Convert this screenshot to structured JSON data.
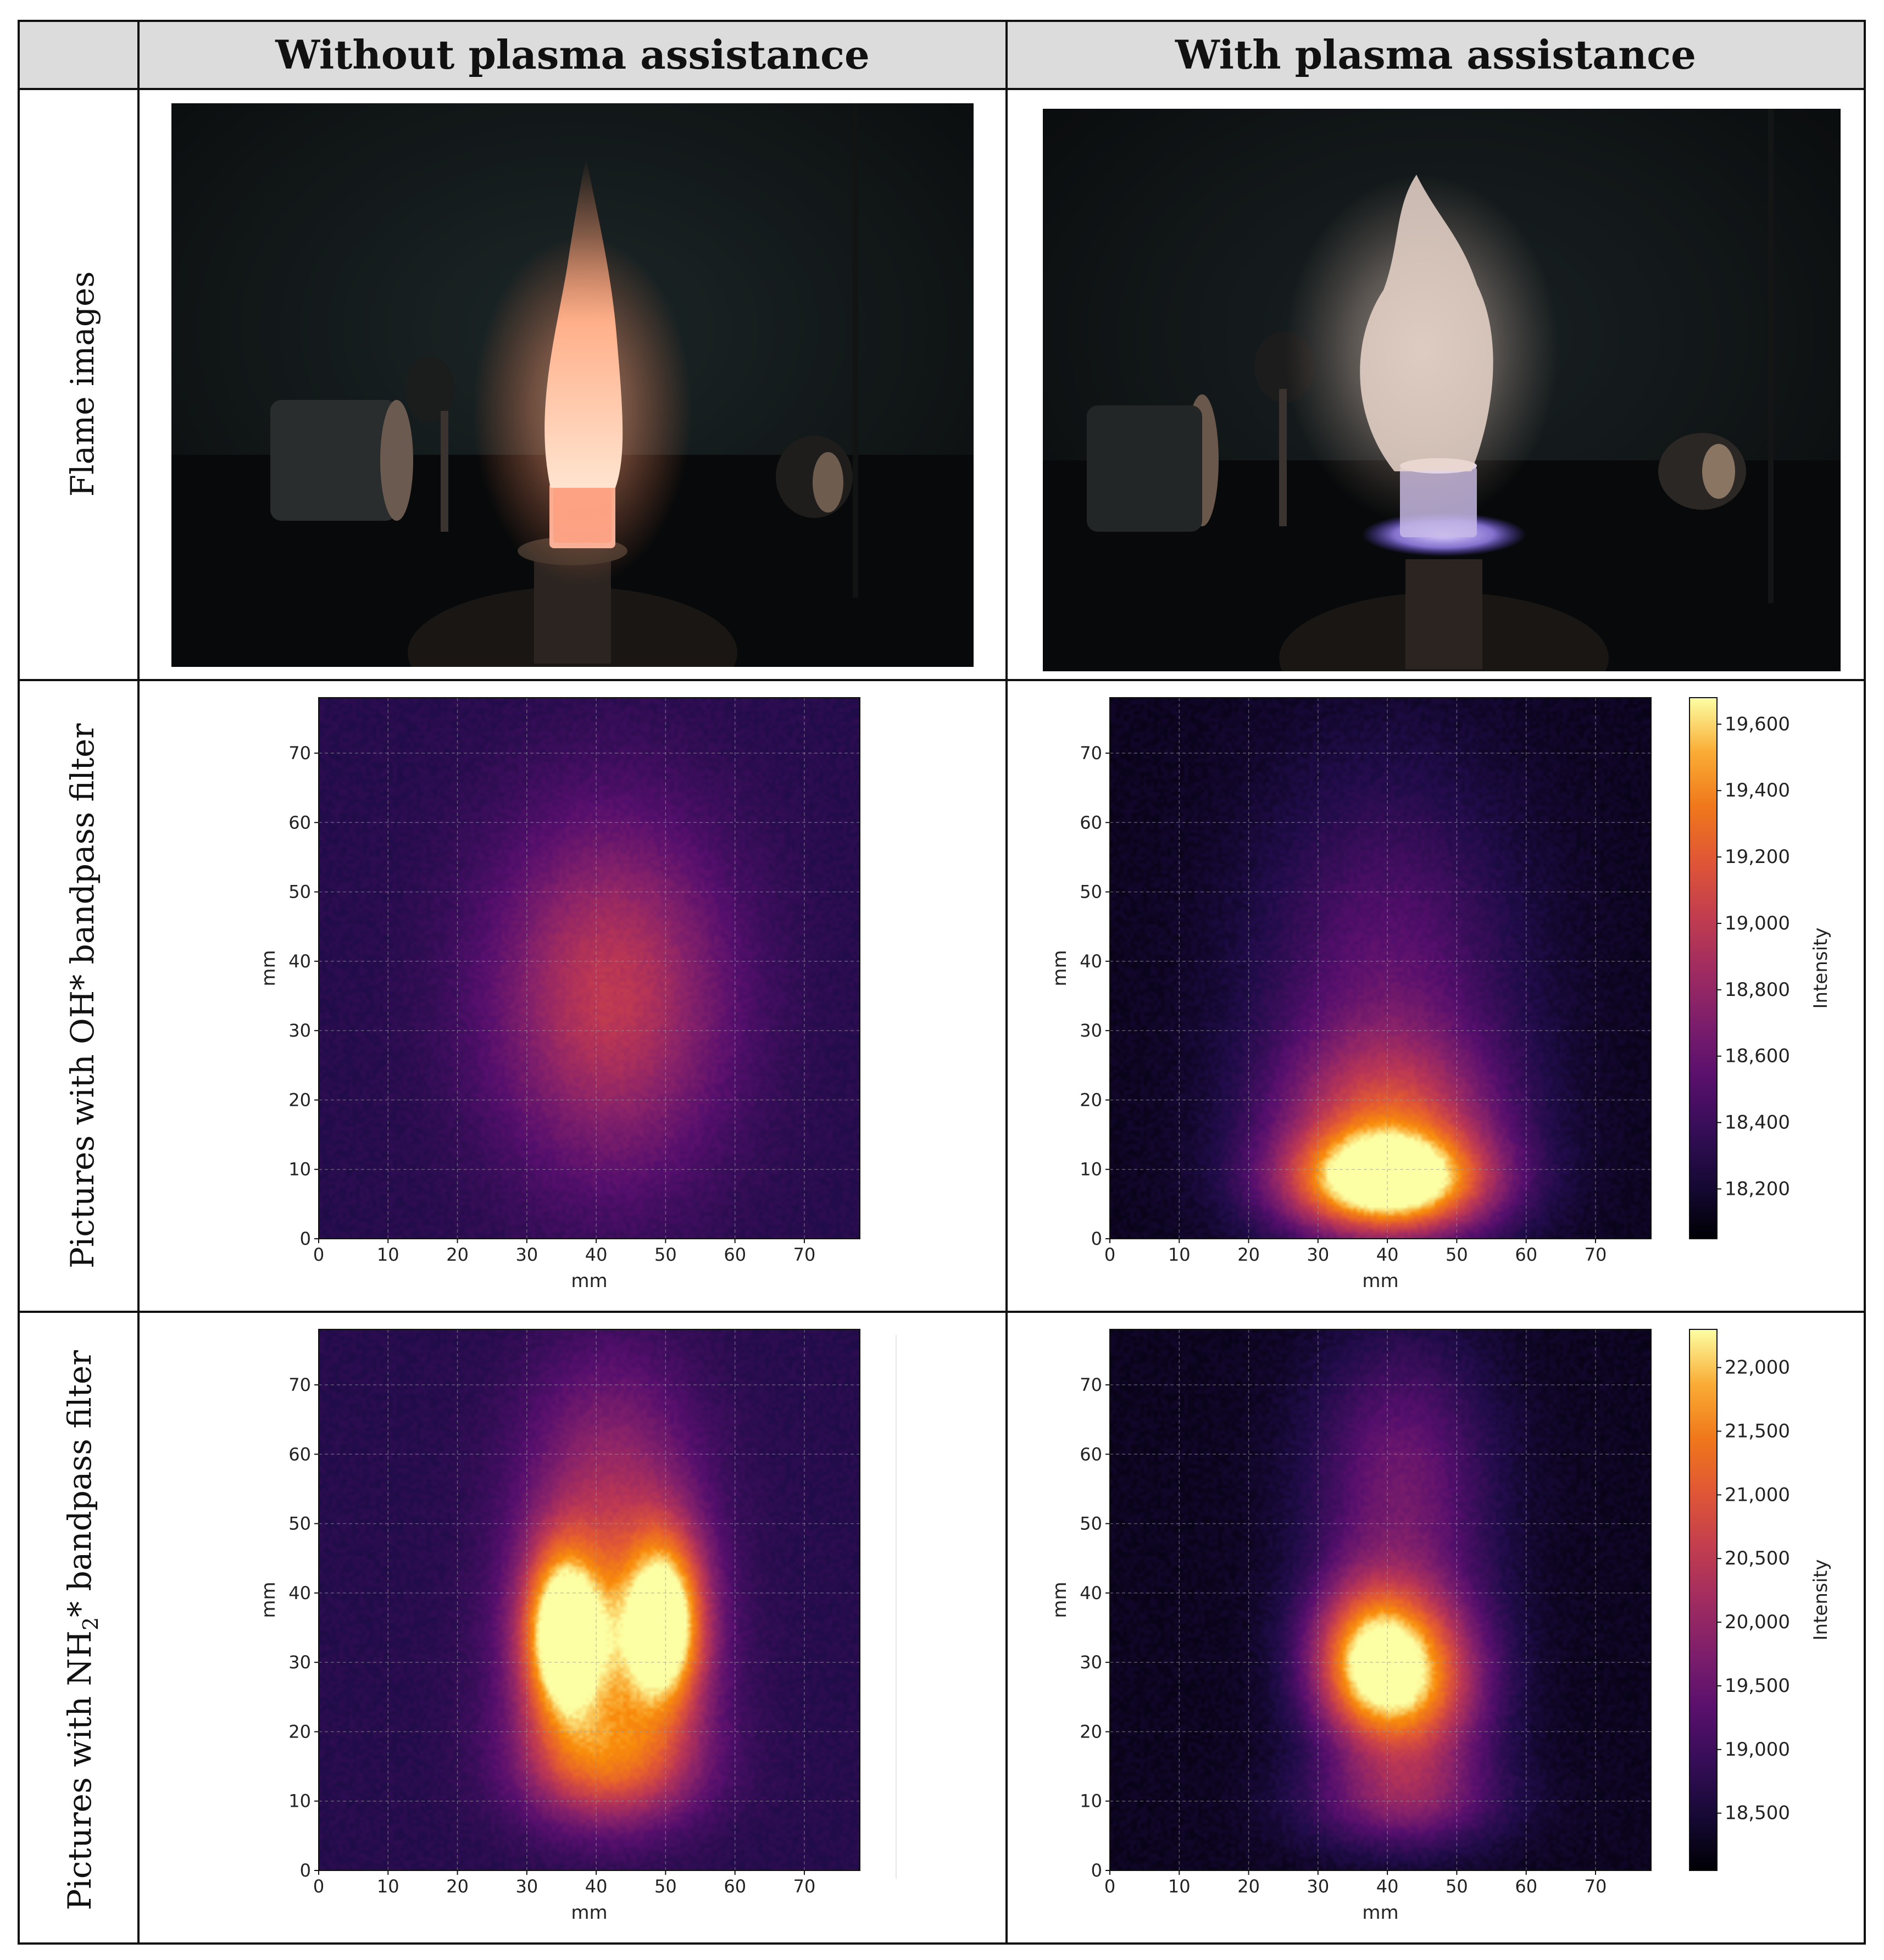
{
  "table": {
    "columns": [
      "Without plasma assistance",
      "With plasma assistance"
    ],
    "rows": [
      {
        "label": "Flame images"
      },
      {
        "label_prefix": "Pictures with OH* bandpass filter"
      },
      {
        "label_prefix": "Pictures with NH",
        "label_sub": "2",
        "label_suffix": "* bandpass filter"
      }
    ]
  },
  "photos": {
    "left": {
      "description_icon": "flame-photo-icon",
      "flame_color": "#ffb38a"
    },
    "right": {
      "description_icon": "flame-photo-icon",
      "flame_color": "#f2ddd4",
      "plasma_color": "#b9a4ff"
    }
  },
  "chart_data": [
    {
      "type": "heatmap",
      "id": "oh-no-plasma",
      "xlabel": "mm",
      "ylabel": "mm",
      "xlim": [
        0,
        78
      ],
      "ylim": [
        0,
        78
      ],
      "xticks": [
        0,
        10,
        20,
        30,
        40,
        50,
        60,
        70
      ],
      "yticks": [
        0,
        10,
        20,
        30,
        40,
        50,
        60,
        70
      ],
      "grid": true,
      "blobs": [
        {
          "x": 42,
          "y": 35,
          "sx": 12,
          "sy": 18,
          "peak": 0.42
        }
      ]
    },
    {
      "type": "heatmap",
      "id": "oh-plasma",
      "xlabel": "mm",
      "ylabel": "mm",
      "xlim": [
        0,
        78
      ],
      "ylim": [
        0,
        78
      ],
      "xticks": [
        0,
        10,
        20,
        30,
        40,
        50,
        60,
        70
      ],
      "yticks": [
        0,
        10,
        20,
        30,
        40,
        50,
        60,
        70
      ],
      "grid": true,
      "blobs": [
        {
          "x": 40,
          "y": 8,
          "sx": 10,
          "sy": 5,
          "peak": 0.85
        },
        {
          "x": 40,
          "y": 16,
          "sx": 11,
          "sy": 9,
          "peak": 0.45
        },
        {
          "x": 40,
          "y": 35,
          "sx": 13,
          "sy": 22,
          "peak": 0.25
        }
      ],
      "colorbar": {
        "label": "Intensity",
        "min": 18050,
        "max": 19680,
        "ticks": [
          "18,200",
          "18,400",
          "18,600",
          "18,800",
          "19,000",
          "19,200",
          "19,400",
          "19,600"
        ],
        "tick_values": [
          18200,
          18400,
          18600,
          18800,
          19000,
          19200,
          19400,
          19600
        ]
      }
    },
    {
      "type": "heatmap",
      "id": "nh2-no-plasma",
      "xlabel": "mm",
      "ylabel": "mm",
      "xlim": [
        0,
        78
      ],
      "ylim": [
        0,
        78
      ],
      "xticks": [
        0,
        10,
        20,
        30,
        40,
        50,
        60,
        70
      ],
      "yticks": [
        0,
        10,
        20,
        30,
        40,
        50,
        60,
        70
      ],
      "grid": true,
      "blobs": [
        {
          "x": 35,
          "y": 34,
          "sx": 4,
          "sy": 9,
          "peak": 0.75
        },
        {
          "x": 50,
          "y": 36,
          "sx": 4,
          "sy": 9,
          "peak": 0.75
        },
        {
          "x": 42,
          "y": 30,
          "sx": 9,
          "sy": 12,
          "peak": 0.5
        },
        {
          "x": 42,
          "y": 55,
          "sx": 9,
          "sy": 14,
          "peak": 0.3
        },
        {
          "x": 42,
          "y": 15,
          "sx": 9,
          "sy": 6,
          "peak": 0.4
        }
      ]
    },
    {
      "type": "heatmap",
      "id": "nh2-plasma",
      "xlabel": "mm",
      "ylabel": "mm",
      "xlim": [
        0,
        78
      ],
      "ylim": [
        0,
        78
      ],
      "xticks": [
        0,
        10,
        20,
        30,
        40,
        50,
        60,
        70
      ],
      "yticks": [
        0,
        10,
        20,
        30,
        40,
        50,
        60,
        70
      ],
      "grid": true,
      "blobs": [
        {
          "x": 37,
          "y": 30,
          "sx": 6,
          "sy": 8,
          "peak": 0.72
        },
        {
          "x": 45,
          "y": 27,
          "sx": 7,
          "sy": 9,
          "peak": 0.6
        },
        {
          "x": 42,
          "y": 55,
          "sx": 9,
          "sy": 15,
          "peak": 0.3
        },
        {
          "x": 42,
          "y": 10,
          "sx": 10,
          "sy": 5,
          "peak": 0.3
        }
      ],
      "colorbar": {
        "label": "Intensity",
        "min": 18050,
        "max": 22300,
        "ticks": [
          "18,500",
          "19,000",
          "19,500",
          "20,000",
          "20,500",
          "21,000",
          "21,500",
          "22,000"
        ],
        "tick_values": [
          18500,
          19000,
          19500,
          20000,
          20500,
          21000,
          21500,
          22000
        ]
      }
    }
  ]
}
